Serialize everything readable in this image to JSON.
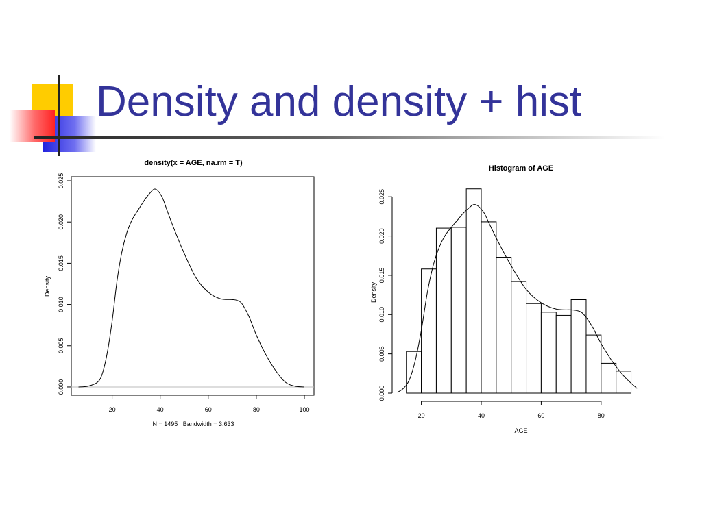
{
  "slide": {
    "title": "Density and density + hist",
    "colors": {
      "title": "#333399",
      "deco_yellow": "#ffcc00",
      "deco_red": "#ff3333",
      "deco_blue": "#2222dd"
    }
  },
  "chart_data": [
    {
      "type": "line",
      "title": "density(x = AGE, na.rm = T)",
      "xlabel": "N = 1495   Bandwidth = 3.633",
      "ylabel": "Density",
      "xlim": [
        3,
        104
      ],
      "ylim": [
        -0.001,
        0.0255
      ],
      "x_ticks": [
        "20",
        "40",
        "60",
        "80",
        "100"
      ],
      "y_ticks": [
        "0.000",
        "0.005",
        "0.010",
        "0.015",
        "0.020",
        "0.025"
      ],
      "baseline": 0,
      "grid": false,
      "series": [
        {
          "x": [
            6,
            10,
            14,
            16,
            18,
            20,
            22,
            24,
            26,
            28,
            30,
            32,
            34,
            36,
            37.5,
            39,
            41,
            43,
            46,
            50,
            55,
            60,
            65,
            70,
            72,
            74,
            77,
            80,
            84,
            88,
            92,
            96,
            100
          ],
          "y": [
            0.0,
            0.0001,
            0.0006,
            0.0017,
            0.0042,
            0.008,
            0.0128,
            0.0163,
            0.0186,
            0.0201,
            0.0211,
            0.022,
            0.0229,
            0.0236,
            0.024,
            0.0238,
            0.0229,
            0.0213,
            0.019,
            0.0162,
            0.0132,
            0.0115,
            0.0107,
            0.0106,
            0.0105,
            0.0101,
            0.0085,
            0.0063,
            0.0039,
            0.002,
            0.0006,
            0.0001,
            0.0
          ]
        }
      ]
    },
    {
      "type": "bar",
      "title": "Histogram of AGE",
      "xlabel": "AGE",
      "ylabel": "Density",
      "xlim": [
        13,
        94
      ],
      "ylim": [
        0,
        0.0265
      ],
      "x_ticks": [
        "20",
        "40",
        "60",
        "80"
      ],
      "y_ticks": [
        "0.000",
        "0.005",
        "0.010",
        "0.015",
        "0.020",
        "0.025"
      ],
      "grid": false,
      "bins": [
        {
          "from": 15,
          "to": 20,
          "value": 0.0053
        },
        {
          "from": 20,
          "to": 25,
          "value": 0.0158
        },
        {
          "from": 25,
          "to": 30,
          "value": 0.021
        },
        {
          "from": 30,
          "to": 35,
          "value": 0.0211
        },
        {
          "from": 35,
          "to": 40,
          "value": 0.026
        },
        {
          "from": 40,
          "to": 45,
          "value": 0.0218
        },
        {
          "from": 45,
          "to": 50,
          "value": 0.0173
        },
        {
          "from": 50,
          "to": 55,
          "value": 0.0142
        },
        {
          "from": 55,
          "to": 60,
          "value": 0.0114
        },
        {
          "from": 60,
          "to": 65,
          "value": 0.0103
        },
        {
          "from": 65,
          "to": 70,
          "value": 0.0099
        },
        {
          "from": 70,
          "to": 75,
          "value": 0.0119
        },
        {
          "from": 75,
          "to": 80,
          "value": 0.0074
        },
        {
          "from": 80,
          "to": 85,
          "value": 0.0038
        },
        {
          "from": 85,
          "to": 90,
          "value": 0.0028
        }
      ],
      "series": [
        {
          "x": [
            12,
            14,
            16,
            18,
            20,
            22,
            24,
            26,
            28,
            30,
            32,
            34,
            36,
            37.5,
            39,
            41,
            43,
            46,
            50,
            55,
            60,
            65,
            70,
            72,
            74,
            77,
            80,
            84,
            88,
            92
          ],
          "y": [
            0.0001,
            0.0006,
            0.0017,
            0.0042,
            0.008,
            0.0128,
            0.0163,
            0.0186,
            0.0201,
            0.0211,
            0.022,
            0.0229,
            0.0236,
            0.024,
            0.0238,
            0.0229,
            0.0213,
            0.019,
            0.0162,
            0.0132,
            0.0115,
            0.0107,
            0.0106,
            0.0105,
            0.0101,
            0.0085,
            0.0063,
            0.0039,
            0.002,
            0.0006
          ]
        }
      ]
    }
  ]
}
